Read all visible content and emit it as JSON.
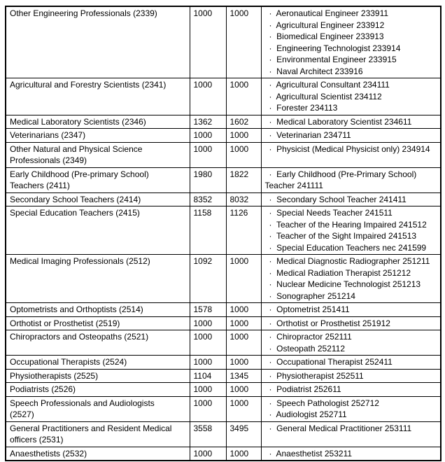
{
  "table": {
    "bullet_char": "·",
    "rows": [
      {
        "group": "Other Engineering Professionals (2339)",
        "value1": "1000",
        "value2": "1000",
        "items": [
          "Aeronautical Engineer 233911",
          "Agricultural Engineer 233912",
          "Biomedical Engineer 233913",
          "Engineering Technologist 233914",
          "Environmental Engineer 233915",
          "Naval Architect 233916"
        ]
      },
      {
        "group": "Agricultural and Forestry Scientists (2341)",
        "value1": "1000",
        "value2": "1000",
        "items": [
          "Agricultural Consultant 234111",
          "Agricultural Scientist 234112",
          "Forester 234113"
        ]
      },
      {
        "group": "Medical Laboratory Scientists (2346)",
        "value1": "1362",
        "value2": "1602",
        "items": [
          "Medical Laboratory Scientist 234611"
        ]
      },
      {
        "group": "Veterinarians (2347)",
        "value1": "1000",
        "value2": "1000",
        "items": [
          "Veterinarian 234711"
        ]
      },
      {
        "group": "Other Natural and Physical Science\nProfessionals (2349)",
        "value1": "1000",
        "value2": "1000",
        "items": [
          "Physicist (Medical Physicist only) 234914"
        ]
      },
      {
        "group": "Early Childhood (Pre-primary School)\nTeachers (2411)",
        "value1": "1980",
        "value2": "1822",
        "items": [
          "Early Childhood (Pre-Primary School)\nTeacher 241111"
        ]
      },
      {
        "group": "Secondary School Teachers (2414)",
        "value1": "8352",
        "value2": "8032",
        "items": [
          "Secondary School Teacher 241411"
        ]
      },
      {
        "group": "Special Education Teachers (2415)",
        "value1": "1158",
        "value2": "1126",
        "items": [
          "Special Needs Teacher 241511",
          "Teacher of the Hearing Impaired 241512",
          "Teacher of the Sight Impaired 241513",
          "Special Education Teachers nec 241599"
        ]
      },
      {
        "group": "Medical Imaging Professionals (2512)",
        "value1": "1092",
        "value2": "1000",
        "items": [
          "Medical Diagnostic Radiographer 251211",
          "Medical Radiation Therapist 251212",
          "Nuclear Medicine Technologist 251213",
          "Sonographer 251214"
        ]
      },
      {
        "group": "Optometrists and Orthoptists (2514)",
        "value1": "1578",
        "value2": "1000",
        "items": [
          "Optometrist 251411"
        ]
      },
      {
        "group": "Orthotist or Prosthetist (2519)",
        "value1": "1000",
        "value2": "1000",
        "items": [
          "Orthotist or Prosthetist 251912"
        ]
      },
      {
        "group": "Chiropractors and Osteopaths (2521)",
        "value1": "1000",
        "value2": "1000",
        "items": [
          "Chiropractor 252111",
          "Osteopath 252112"
        ]
      },
      {
        "group": "Occupational Therapists (2524)",
        "value1": "1000",
        "value2": "1000",
        "items": [
          "Occupational Therapist 252411"
        ]
      },
      {
        "group": "Physiotherapists (2525)",
        "value1": "1104",
        "value2": "1345",
        "items": [
          "Physiotherapist 252511"
        ]
      },
      {
        "group": "Podiatrists (2526)",
        "value1": "1000",
        "value2": "1000",
        "items": [
          "Podiatrist 252611"
        ]
      },
      {
        "group": "Speech Professionals and Audiologists\n(2527)",
        "value1": "1000",
        "value2": "1000",
        "items": [
          "Speech Pathologist 252712",
          "Audiologist 252711"
        ]
      },
      {
        "group": "General Practitioners and Resident Medical\nofficers (2531)",
        "value1": "3558",
        "value2": "3495",
        "items": [
          "General Medical Practitioner 253111"
        ]
      },
      {
        "group": "Anaesthetists (2532)",
        "value1": "1000",
        "value2": "1000",
        "items": [
          "Anaesthetist 253211"
        ]
      }
    ]
  }
}
